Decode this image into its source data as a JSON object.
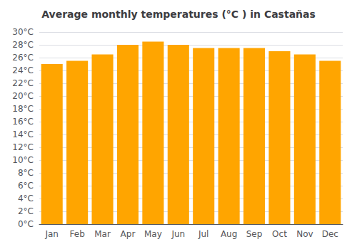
{
  "chart_data": {
    "type": "bar",
    "title": "Average monthly temperatures (°C ) in Castañas",
    "categories": [
      "Jan",
      "Feb",
      "Mar",
      "Apr",
      "May",
      "Jun",
      "Jul",
      "Aug",
      "Sep",
      "Oct",
      "Nov",
      "Dec"
    ],
    "values": [
      25.0,
      25.5,
      26.5,
      28.0,
      28.5,
      28.0,
      27.5,
      27.5,
      27.5,
      27.0,
      26.5,
      25.5
    ],
    "color": "#FFA500",
    "ylim": [
      0,
      30
    ],
    "yticks": [
      {
        "value": 0,
        "label": "0°C"
      },
      {
        "value": 2,
        "label": "2°C"
      },
      {
        "value": 4,
        "label": "4°C"
      },
      {
        "value": 6,
        "label": "6°C"
      },
      {
        "value": 8,
        "label": "8°C"
      },
      {
        "value": 10,
        "label": "10°C"
      },
      {
        "value": 12,
        "label": "12°C"
      },
      {
        "value": 14,
        "label": "14°C"
      },
      {
        "value": 16,
        "label": "16°C"
      },
      {
        "value": 18,
        "label": "18°C"
      },
      {
        "value": 20,
        "label": "20°C"
      },
      {
        "value": 22,
        "label": "22°C"
      },
      {
        "value": 24,
        "label": "24°C"
      },
      {
        "value": 26,
        "label": "26°C"
      },
      {
        "value": 28,
        "label": "28°C"
      },
      {
        "value": 30,
        "label": "30°C"
      }
    ],
    "grid": true
  }
}
